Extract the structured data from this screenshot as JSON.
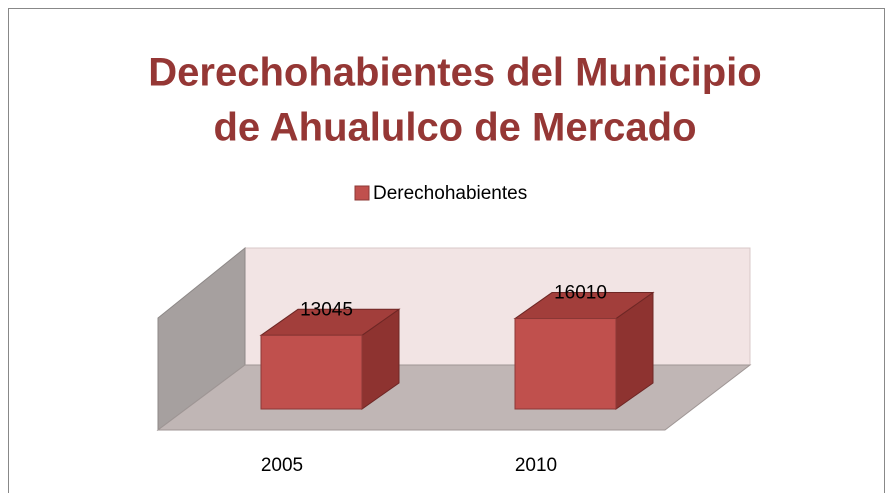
{
  "chart_data": {
    "type": "bar3d",
    "title": [
      "Derechohabientes del Municipio",
      "de Ahualulco de Mercado"
    ],
    "categories": [
      "2005",
      "2010"
    ],
    "series": [
      {
        "name": "Derechohabientes",
        "color": "#c0504d",
        "values": [
          13045,
          16010
        ]
      }
    ],
    "ylim": [
      0,
      20000
    ]
  }
}
